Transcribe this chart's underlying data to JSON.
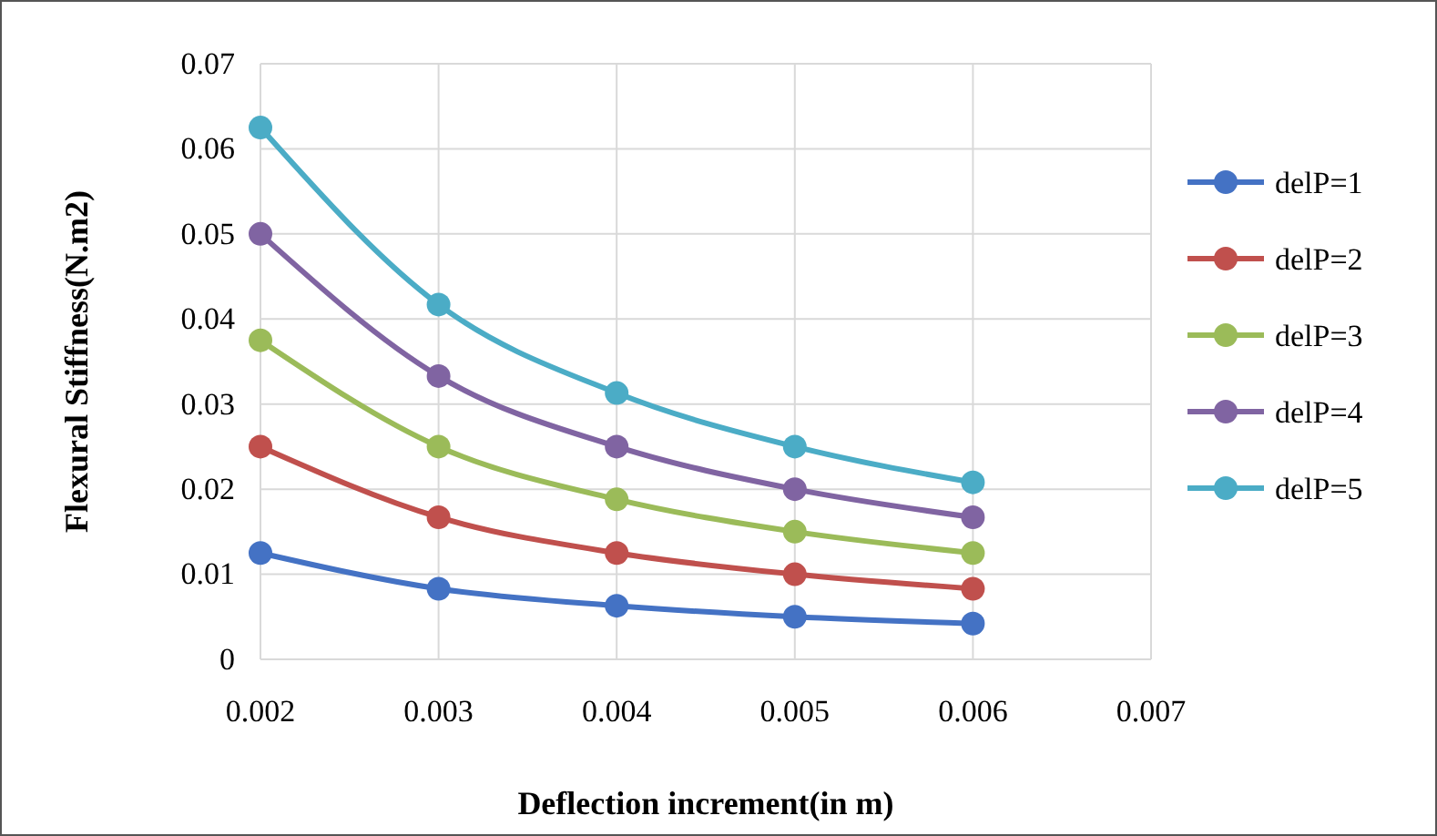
{
  "chart_data": {
    "type": "line",
    "xlabel": "Deflection increment(in m)",
    "ylabel": "Flexural Stiffness(N.m2)",
    "x": [
      0.002,
      0.003,
      0.004,
      0.005,
      0.006
    ],
    "series": [
      {
        "name": "delP=1",
        "color": "#4472c4",
        "values": [
          0.0125,
          0.0083,
          0.0063,
          0.005,
          0.0042
        ]
      },
      {
        "name": "delP=2",
        "color": "#c0504d",
        "values": [
          0.025,
          0.0167,
          0.0125,
          0.01,
          0.0083
        ]
      },
      {
        "name": "delP=3",
        "color": "#9bbb59",
        "values": [
          0.0375,
          0.025,
          0.0188,
          0.015,
          0.0125
        ]
      },
      {
        "name": "delP=4",
        "color": "#8064a2",
        "values": [
          0.05,
          0.0333,
          0.025,
          0.02,
          0.0167
        ]
      },
      {
        "name": "delP=5",
        "color": "#4bacc6",
        "values": [
          0.0625,
          0.0417,
          0.0313,
          0.025,
          0.0208
        ]
      }
    ],
    "xlim": [
      0.002,
      0.007
    ],
    "xticks": [
      0.002,
      0.003,
      0.004,
      0.005,
      0.006,
      0.007
    ],
    "ylim": [
      0,
      0.07
    ],
    "yticks": [
      0,
      0.01,
      0.02,
      0.03,
      0.04,
      0.05,
      0.06,
      0.07
    ],
    "grid": true,
    "legend": "right",
    "marker": "circle",
    "line_style": "solid"
  }
}
